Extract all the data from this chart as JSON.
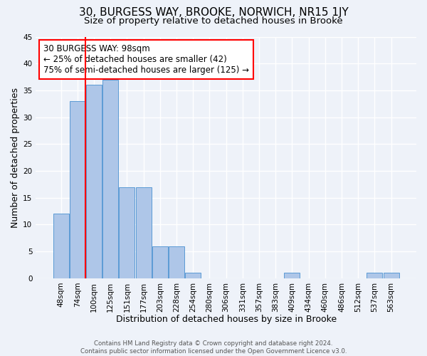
{
  "title": "30, BURGESS WAY, BROOKE, NORWICH, NR15 1JY",
  "subtitle": "Size of property relative to detached houses in Brooke",
  "xlabel": "Distribution of detached houses by size in Brooke",
  "ylabel": "Number of detached properties",
  "bin_labels": [
    "48sqm",
    "74sqm",
    "100sqm",
    "125sqm",
    "151sqm",
    "177sqm",
    "203sqm",
    "228sqm",
    "254sqm",
    "280sqm",
    "306sqm",
    "331sqm",
    "357sqm",
    "383sqm",
    "409sqm",
    "434sqm",
    "460sqm",
    "486sqm",
    "512sqm",
    "537sqm",
    "563sqm"
  ],
  "bar_values": [
    12,
    33,
    36,
    37,
    17,
    17,
    6,
    6,
    1,
    0,
    0,
    0,
    0,
    0,
    1,
    0,
    0,
    0,
    0,
    1,
    1
  ],
  "bar_color": "#aec6e8",
  "bar_edge_color": "#5b9bd5",
  "red_line_bin_index": 2,
  "annotation_box": {
    "text_lines": [
      "30 BURGESS WAY: 98sqm",
      "← 25% of detached houses are smaller (42)",
      "75% of semi-detached houses are larger (125) →"
    ],
    "box_color": "white",
    "box_edge_color": "red",
    "fontsize": 8.5
  },
  "ylim": [
    0,
    45
  ],
  "yticks": [
    0,
    5,
    10,
    15,
    20,
    25,
    30,
    35,
    40,
    45
  ],
  "footer_lines": [
    "Contains HM Land Registry data © Crown copyright and database right 2024.",
    "Contains public sector information licensed under the Open Government Licence v3.0."
  ],
  "background_color": "#eef2f9",
  "grid_color": "white",
  "title_fontsize": 11,
  "subtitle_fontsize": 9.5,
  "axis_label_fontsize": 9,
  "tick_fontsize": 7.5
}
